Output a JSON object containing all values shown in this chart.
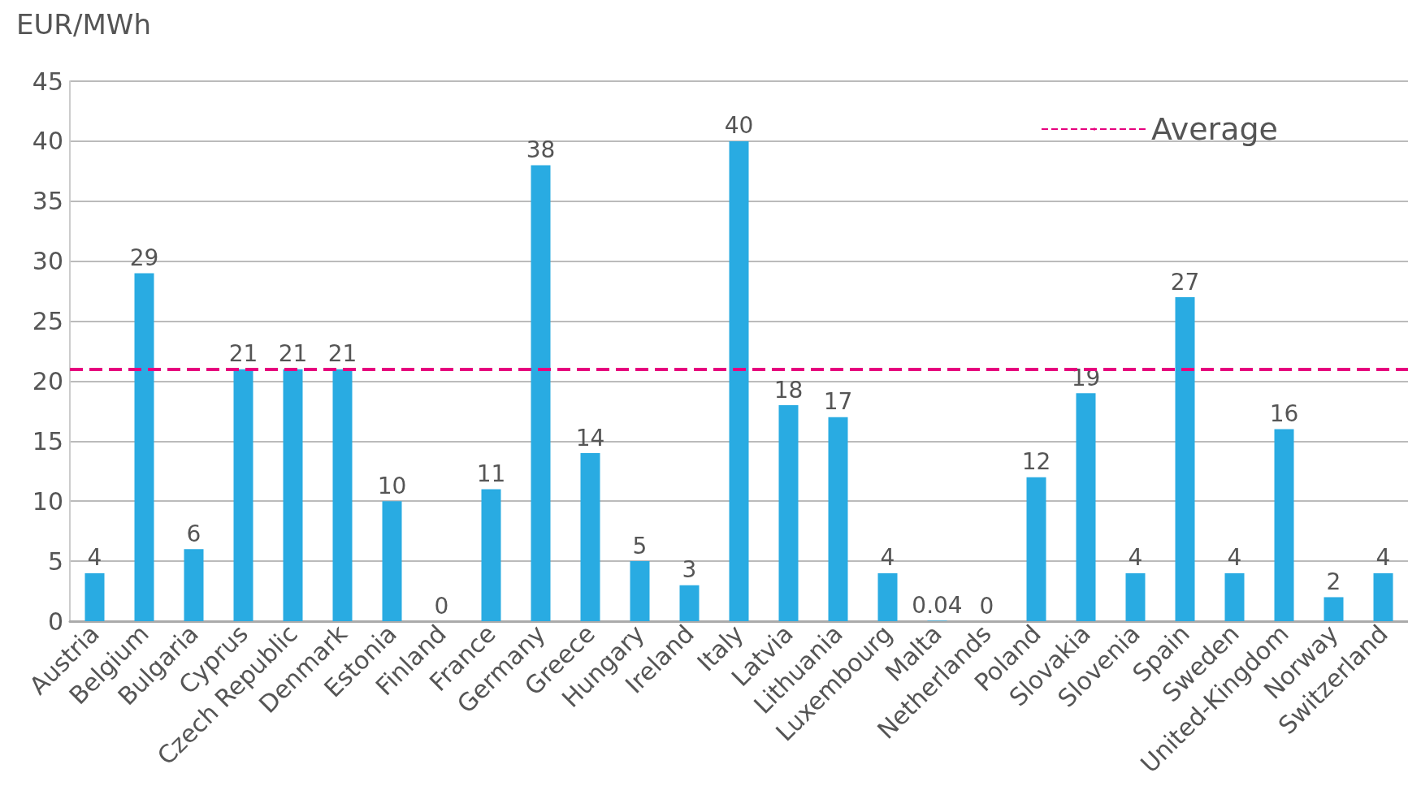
{
  "chart_data": {
    "type": "bar",
    "ylabel": "EUR/MWh",
    "categories": [
      "Austria",
      "Belgium",
      "Bulgaria",
      "Cyprus",
      "Czech Republic",
      "Denmark",
      "Estonia",
      "Finland",
      "France",
      "Germany",
      "Greece",
      "Hungary",
      "Ireland",
      "Italy",
      "Latvia",
      "Lithuania",
      "Luxembourg",
      "Malta",
      "Netherlands",
      "Poland",
      "Slovakia",
      "Slovenia",
      "Spain",
      "Sweden",
      "United-Kingdom",
      "Norway",
      "Switzerland"
    ],
    "values": [
      4,
      29,
      6,
      21,
      21,
      21,
      10,
      0,
      11,
      38,
      14,
      5,
      3,
      40,
      18,
      17,
      4,
      0.04,
      0,
      12,
      19,
      4,
      27,
      4,
      16,
      2,
      4
    ],
    "color": "#29abe2",
    "data_labels": true,
    "ylim": [
      0,
      45
    ],
    "yticks": [
      0,
      5,
      10,
      15,
      20,
      25,
      30,
      35,
      40,
      45
    ],
    "grid": "y",
    "legend": "top right",
    "ref_lines": [
      {
        "axis": "y",
        "value": 21,
        "label": "Average",
        "color": "#e6007e",
        "line_style": "dashed"
      }
    ]
  }
}
